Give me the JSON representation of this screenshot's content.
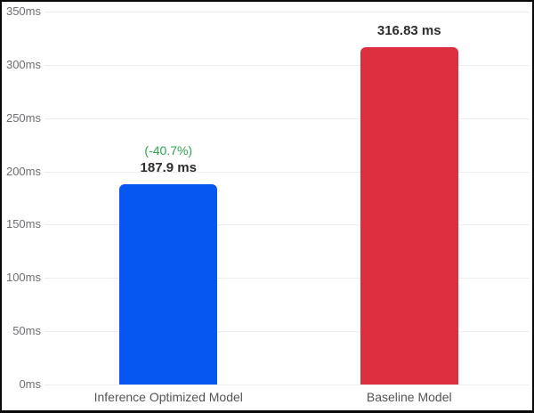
{
  "chart_data": {
    "type": "bar",
    "title": "",
    "xlabel": "",
    "ylabel": "",
    "unit": "ms",
    "categories": [
      "Inference Optimized Model",
      "Baseline Model"
    ],
    "values": [
      187.9,
      316.83
    ],
    "value_labels": [
      "187.9 ms",
      "316.83 ms"
    ],
    "delta_labels": [
      "(-40.7%)",
      ""
    ],
    "bar_colors": [
      "#0656f2",
      "#dc2f3f"
    ],
    "delta_color": "#2ea44f",
    "ylim": [
      0,
      350
    ],
    "ytick_step": 50,
    "yticks": [
      {
        "value": 0,
        "label": "0ms"
      },
      {
        "value": 50,
        "label": "50ms"
      },
      {
        "value": 100,
        "label": "100ms"
      },
      {
        "value": 150,
        "label": "150ms"
      },
      {
        "value": 200,
        "label": "200ms"
      },
      {
        "value": 250,
        "label": "250ms"
      },
      {
        "value": 300,
        "label": "300ms"
      },
      {
        "value": 350,
        "label": "350ms"
      }
    ],
    "grid": true,
    "legend_position": "none"
  }
}
